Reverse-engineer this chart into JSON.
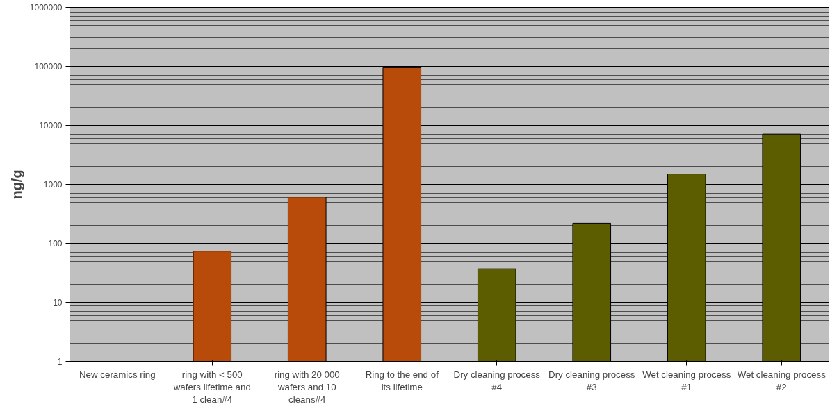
{
  "chart_data": {
    "type": "bar",
    "ylabel": "ng/g",
    "categories": [
      "New ceramics ring",
      "ring with < 500 wafers lifetime and 1 clean#4",
      "ring with 20 000 wafers and 10 cleans#4",
      "Ring to the end of its lifetime",
      "Dry cleaning process #4",
      "Dry cleaning process #3",
      "Wet cleaning process #1",
      "Wet cleaning process #2"
    ],
    "values": [
      null,
      74,
      610,
      95000,
      37,
      220,
      1500,
      7100
    ],
    "colors": [
      "#b84a0a",
      "#b84a0a",
      "#b84a0a",
      "#b84a0a",
      "#5c5c00",
      "#5c5c00",
      "#5c5c00",
      "#5c5c00"
    ],
    "log": "y",
    "ylim": [
      1,
      1000000
    ],
    "yticks": [
      1,
      10,
      100,
      1000,
      10000,
      100000,
      1000000
    ],
    "grid": "y"
  }
}
